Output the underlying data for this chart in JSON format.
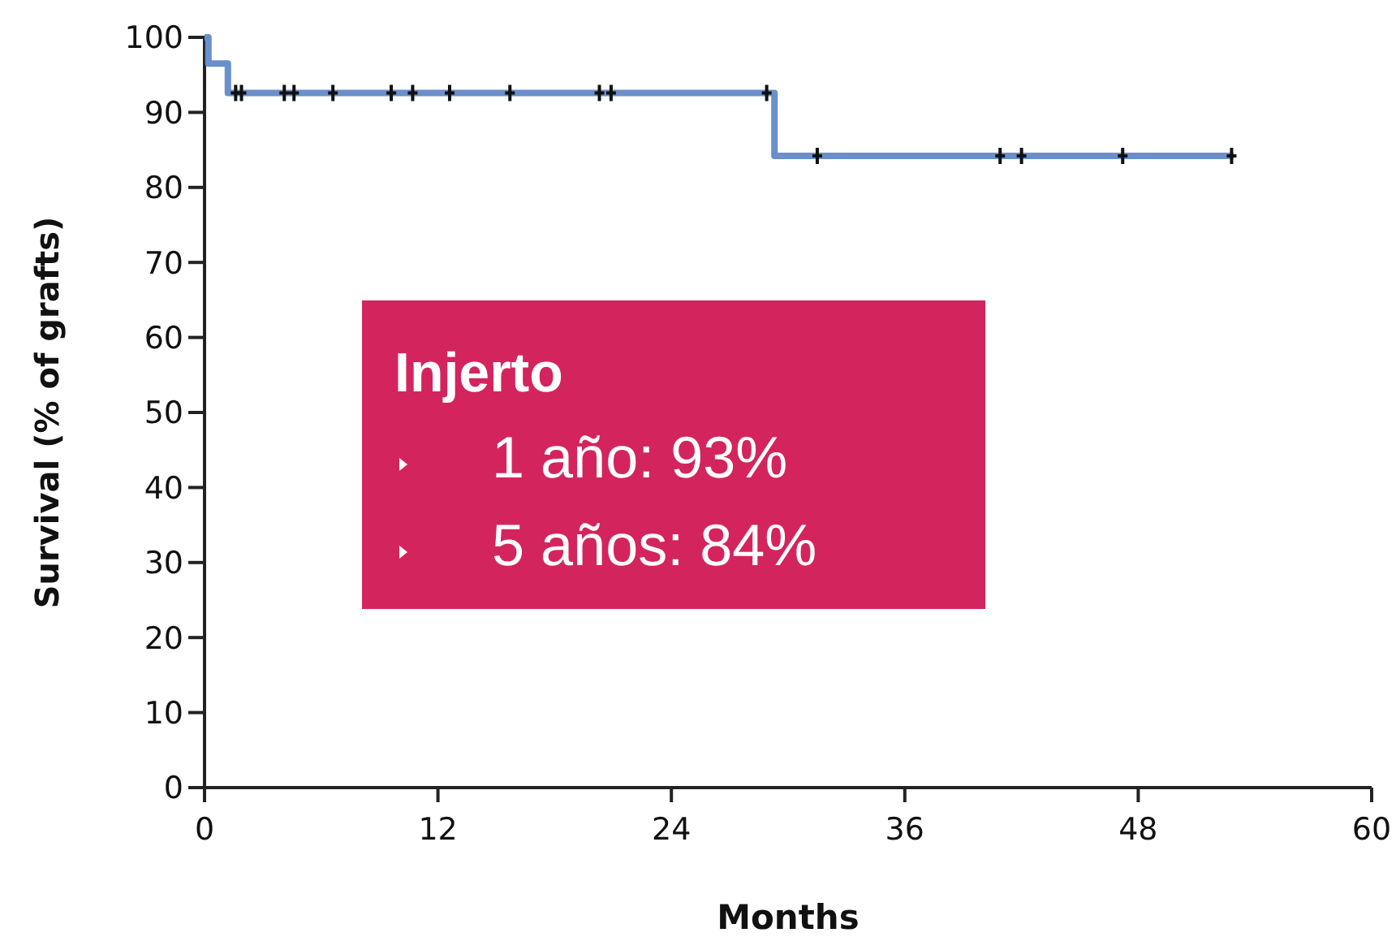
{
  "chart_data": {
    "type": "step",
    "xlabel": "Months",
    "ylabel": "Survival (% of grafts)",
    "xlim": [
      0,
      60
    ],
    "xticks": [
      0,
      12,
      24,
      36,
      48,
      60
    ],
    "ylim": [
      0,
      100
    ],
    "yticks": [
      0,
      10,
      20,
      30,
      40,
      50,
      60,
      70,
      80,
      90,
      100
    ],
    "grid": false,
    "annotations": [
      "Injerto",
      "1 año: 93%",
      "5 años: 84%"
    ],
    "series": [
      {
        "color": "#6a8fcb",
        "marker": "none",
        "x": [
          0,
          0.2,
          1.2,
          29.3,
          52.9
        ],
        "values": [
          100,
          96.5,
          92.6,
          84.2,
          84.2
        ]
      },
      {
        "type": "scatter",
        "color": "#111111",
        "marker": "cross",
        "x": [
          1.6,
          1.9,
          4.1,
          4.6,
          6.6,
          9.6,
          10.7,
          12.6,
          15.7,
          20.3,
          20.9,
          28.9,
          31.5,
          40.9,
          42.0,
          47.2,
          52.8
        ],
        "values": [
          92.6,
          92.6,
          92.6,
          92.6,
          92.6,
          92.6,
          92.6,
          92.6,
          92.6,
          92.6,
          92.6,
          92.6,
          84.2,
          84.2,
          84.2,
          84.2,
          84.2
        ]
      }
    ]
  }
}
